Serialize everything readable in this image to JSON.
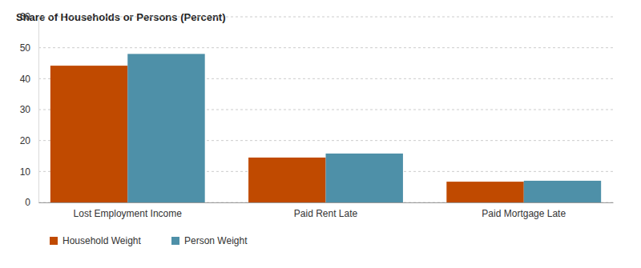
{
  "chart_data": {
    "type": "bar",
    "title": "Share of Households or Persons (Percent)",
    "categories": [
      "Lost Employment Income",
      "Paid Rent Late",
      "Paid Mortgage Late"
    ],
    "series": [
      {
        "name": "Household Weight",
        "color": "#c04a00",
        "values": [
          44.2,
          14.5,
          6.7
        ]
      },
      {
        "name": "Person Weight",
        "color": "#4e90a8",
        "values": [
          48.0,
          15.8,
          7.0
        ]
      }
    ],
    "ylim": [
      0,
      60
    ],
    "yticks": [
      0,
      10,
      20,
      30,
      40,
      50,
      60
    ],
    "grid": true,
    "legend": "bottom-left"
  }
}
